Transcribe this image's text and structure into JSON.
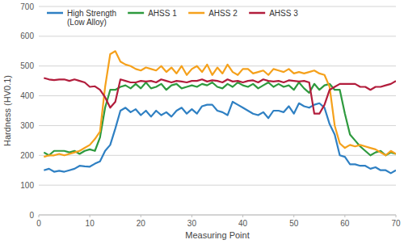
{
  "chart_data": {
    "type": "line",
    "x_label": "Measuring Point",
    "y_label": "Hardness (HV0.1)",
    "x": [
      1,
      2,
      3,
      4,
      5,
      6,
      7,
      8,
      9,
      10,
      11,
      12,
      13,
      14,
      15,
      16,
      17,
      18,
      19,
      20,
      21,
      22,
      23,
      24,
      25,
      26,
      27,
      28,
      29,
      30,
      31,
      32,
      33,
      34,
      35,
      36,
      37,
      38,
      39,
      40,
      41,
      42,
      43,
      44,
      45,
      46,
      47,
      48,
      49,
      50,
      51,
      52,
      53,
      54,
      55,
      56,
      57,
      58,
      59,
      60,
      61,
      62,
      63,
      64,
      65,
      66,
      67,
      68,
      69,
      70
    ],
    "series": [
      {
        "name": "High Strength (Low Alloy)",
        "color": "#2f80c3",
        "values": [
          150,
          155,
          145,
          148,
          145,
          150,
          155,
          165,
          163,
          162,
          172,
          180,
          215,
          235,
          290,
          350,
          360,
          345,
          355,
          335,
          350,
          330,
          350,
          335,
          345,
          330,
          350,
          360,
          340,
          355,
          340,
          365,
          370,
          370,
          350,
          345,
          335,
          380,
          370,
          360,
          350,
          340,
          335,
          345,
          325,
          350,
          350,
          345,
          365,
          340,
          375,
          365,
          360,
          370,
          375,
          360,
          305,
          270,
          200,
          195,
          170,
          170,
          165,
          165,
          155,
          160,
          150,
          150,
          140,
          150
        ]
      },
      {
        "name": "AHSS 1",
        "color": "#2e9a3e",
        "values": [
          210,
          200,
          215,
          215,
          215,
          210,
          215,
          205,
          215,
          220,
          215,
          260,
          360,
          420,
          420,
          430,
          435,
          425,
          440,
          425,
          445,
          425,
          430,
          440,
          420,
          435,
          440,
          425,
          430,
          435,
          430,
          440,
          435,
          445,
          430,
          425,
          440,
          430,
          445,
          435,
          430,
          440,
          425,
          435,
          445,
          430,
          440,
          430,
          435,
          420,
          445,
          425,
          410,
          440,
          420,
          435,
          440,
          420,
          420,
          340,
          270,
          250,
          230,
          215,
          200,
          210,
          215,
          200,
          210,
          205
        ]
      },
      {
        "name": "AHSS 2",
        "color": "#f5a11c",
        "values": [
          195,
          200,
          200,
          205,
          200,
          205,
          210,
          215,
          225,
          235,
          255,
          280,
          430,
          540,
          550,
          515,
          505,
          500,
          490,
          485,
          495,
          490,
          485,
          500,
          480,
          495,
          475,
          500,
          470,
          490,
          500,
          480,
          505,
          470,
          495,
          475,
          505,
          480,
          470,
          490,
          490,
          475,
          480,
          485,
          470,
          490,
          485,
          480,
          490,
          475,
          480,
          475,
          480,
          485,
          475,
          470,
          430,
          300,
          240,
          225,
          235,
          230,
          235,
          230,
          225,
          220,
          210,
          200,
          215,
          205
        ]
      },
      {
        "name": "AHSS 3",
        "color": "#b21d3c",
        "values": [
          460,
          455,
          453,
          455,
          455,
          450,
          455,
          450,
          445,
          430,
          432,
          420,
          395,
          360,
          380,
          455,
          450,
          445,
          445,
          450,
          448,
          450,
          445,
          455,
          450,
          445,
          450,
          448,
          445,
          450,
          450,
          455,
          448,
          452,
          450,
          445,
          455,
          448,
          450,
          445,
          450,
          452,
          445,
          455,
          450,
          448,
          450,
          445,
          452,
          450,
          448,
          450,
          445,
          340,
          340,
          370,
          420,
          430,
          440,
          440,
          440,
          440,
          430,
          430,
          420,
          430,
          430,
          435,
          440,
          450
        ]
      }
    ],
    "xlim": [
      0,
      70
    ],
    "xticks": [
      0,
      10,
      20,
      30,
      40,
      50,
      60,
      70
    ],
    "ylim": [
      0,
      700
    ],
    "yticks": [
      0,
      100,
      200,
      300,
      400,
      500,
      600,
      700
    ],
    "grid": true,
    "legend": "top-left"
  }
}
